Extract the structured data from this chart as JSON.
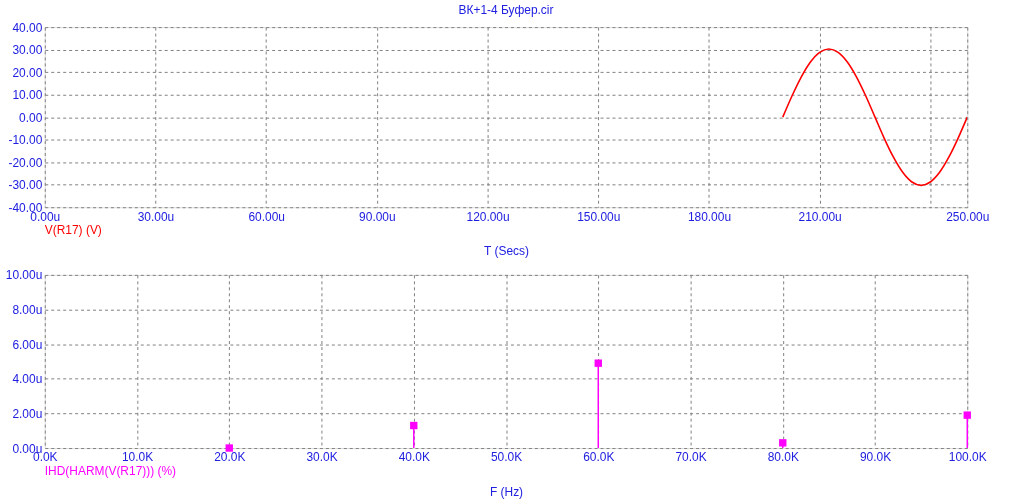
{
  "chart_data": [
    {
      "type": "line",
      "title": "ВК+1-4 Буфер.cir",
      "xlabel": "T (Secs)",
      "x": [
        200,
        202.5,
        205,
        207.5,
        210,
        212.5,
        215,
        217.5,
        220,
        222.5,
        225,
        227.5,
        230,
        232.5,
        235,
        237.5,
        240,
        242.5,
        245,
        247.5,
        250
      ],
      "series": [
        {
          "name": "V(R17) (V)",
          "color": "#ff0000",
          "values": [
            0,
            9.4,
            17.8,
            24.5,
            28.8,
            30.3,
            28.8,
            24.5,
            17.8,
            9.4,
            0,
            -9.4,
            -17.8,
            -24.5,
            -28.8,
            -30.3,
            -28.8,
            -24.5,
            -17.8,
            -9.4,
            0
          ]
        }
      ],
      "xlim": [
        0,
        250
      ],
      "xticks": [
        {
          "value": 0,
          "label": "0.00u"
        },
        {
          "value": 30,
          "label": "30.00u"
        },
        {
          "value": 60,
          "label": "60.00u"
        },
        {
          "value": 90,
          "label": "90.00u"
        },
        {
          "value": 120,
          "label": "120.00u"
        },
        {
          "value": 150,
          "label": "150.00u"
        },
        {
          "value": 180,
          "label": "180.00u"
        },
        {
          "value": 210,
          "label": "210.00u"
        },
        {
          "value": 240,
          "label": null
        },
        {
          "value": 250,
          "label": "250.00u"
        }
      ],
      "ylim": [
        -40,
        40
      ],
      "yticks": [
        {
          "value": -40,
          "label": "-40.00"
        },
        {
          "value": -30,
          "label": "-30.00"
        },
        {
          "value": -20,
          "label": "-20.00"
        },
        {
          "value": -10,
          "label": "-10.00"
        },
        {
          "value": 0,
          "label": "0.00"
        },
        {
          "value": 10,
          "label": "10.00"
        },
        {
          "value": 20,
          "label": "20.00"
        },
        {
          "value": 30,
          "label": "30.00"
        },
        {
          "value": 40,
          "label": "40.00"
        }
      ],
      "grid": true
    },
    {
      "type": "lollipop",
      "xlabel": "F (Hz)",
      "marker": "square",
      "x": [
        20,
        40,
        60,
        80,
        100
      ],
      "series": [
        {
          "name": "IHD(HARM(V(R17))) (%)",
          "color": "#ff00ff",
          "values": [
            0,
            1.3,
            4.9,
            0.3,
            1.9
          ]
        }
      ],
      "xlim": [
        0,
        100
      ],
      "xticks": [
        {
          "value": 0,
          "label": "0.0K"
        },
        {
          "value": 10,
          "label": "10.0K"
        },
        {
          "value": 20,
          "label": "20.0K"
        },
        {
          "value": 30,
          "label": "30.0K"
        },
        {
          "value": 40,
          "label": "40.0K"
        },
        {
          "value": 50,
          "label": "50.0K"
        },
        {
          "value": 60,
          "label": "60.0K"
        },
        {
          "value": 70,
          "label": "70.0K"
        },
        {
          "value": 80,
          "label": "80.0K"
        },
        {
          "value": 90,
          "label": "90.0K"
        },
        {
          "value": 100,
          "label": "100.0K"
        }
      ],
      "ylim": [
        0,
        10
      ],
      "yticks": [
        {
          "value": 0,
          "label": "0.00u"
        },
        {
          "value": 2,
          "label": "2.00u"
        },
        {
          "value": 4,
          "label": "4.00u"
        },
        {
          "value": 6,
          "label": "6.00u"
        },
        {
          "value": 8,
          "label": "8.00u"
        },
        {
          "value": 10,
          "label": "10.00u"
        }
      ],
      "grid": true
    }
  ]
}
